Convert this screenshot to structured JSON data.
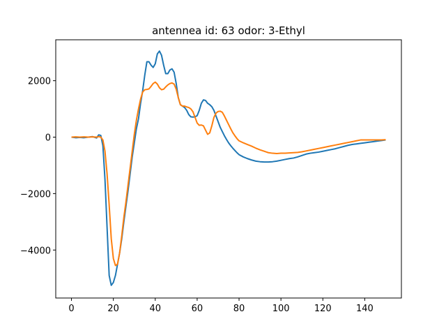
{
  "chart_data": {
    "type": "line",
    "title": "antennea id: 63    odor: 3-Ethyl",
    "xlabel": "",
    "ylabel": "",
    "xlim": [
      -7.5,
      157.5
    ],
    "ylim": [
      -5700,
      3450
    ],
    "xticks": [
      0,
      20,
      40,
      60,
      80,
      100,
      120,
      140
    ],
    "yticks": [
      -4000,
      -2000,
      0,
      2000
    ],
    "yticklabels": [
      "−4000",
      "−2000",
      "0",
      "2000"
    ],
    "grid": false,
    "legend": "none",
    "series": [
      {
        "color": "#1f77b4",
        "x": [
          0,
          2,
          4,
          6,
          8,
          10,
          12,
          13,
          14,
          15,
          16,
          17,
          18,
          19,
          20,
          21,
          22,
          23,
          24,
          25,
          26,
          27,
          28,
          29,
          30,
          31,
          32,
          33,
          34,
          35,
          36,
          37,
          38,
          39,
          40,
          41,
          42,
          43,
          44,
          45,
          46,
          47,
          48,
          49,
          50,
          51,
          52,
          53,
          54,
          55,
          56,
          57,
          58,
          59,
          60,
          61,
          62,
          63,
          64,
          65,
          66,
          67,
          68,
          69,
          70,
          71,
          72,
          73,
          74,
          75,
          76,
          77,
          78,
          79,
          80,
          82,
          84,
          86,
          88,
          90,
          92,
          94,
          96,
          98,
          100,
          102,
          104,
          106,
          108,
          110,
          112,
          114,
          116,
          118,
          120,
          122,
          124,
          126,
          128,
          130,
          132,
          134,
          136,
          138,
          140,
          142,
          144,
          146,
          148,
          150
        ],
        "y": [
          0,
          -20,
          -10,
          -20,
          0,
          20,
          -30,
          80,
          60,
          -300,
          -1500,
          -3200,
          -4900,
          -5250,
          -5150,
          -4900,
          -4500,
          -4100,
          -3600,
          -3000,
          -2450,
          -1900,
          -1300,
          -700,
          -200,
          300,
          650,
          1200,
          1650,
          2200,
          2670,
          2670,
          2550,
          2470,
          2600,
          2950,
          3050,
          2900,
          2550,
          2250,
          2250,
          2380,
          2420,
          2300,
          1900,
          1400,
          1150,
          1100,
          1050,
          950,
          800,
          720,
          710,
          720,
          760,
          950,
          1200,
          1320,
          1300,
          1200,
          1150,
          1080,
          950,
          750,
          550,
          350,
          200,
          50,
          -80,
          -200,
          -300,
          -390,
          -470,
          -550,
          -620,
          -700,
          -760,
          -810,
          -850,
          -870,
          -880,
          -880,
          -870,
          -850,
          -820,
          -790,
          -760,
          -740,
          -700,
          -650,
          -600,
          -570,
          -550,
          -530,
          -500,
          -470,
          -440,
          -410,
          -370,
          -330,
          -290,
          -260,
          -240,
          -220,
          -200,
          -180,
          -160,
          -140,
          -120,
          -100
        ]
      },
      {
        "color": "#ff7f0e",
        "x": [
          0,
          2,
          4,
          6,
          8,
          10,
          12,
          13,
          14,
          15,
          16,
          17,
          18,
          19,
          20,
          21,
          22,
          23,
          24,
          25,
          26,
          27,
          28,
          29,
          30,
          31,
          32,
          33,
          34,
          35,
          36,
          37,
          38,
          39,
          40,
          41,
          42,
          43,
          44,
          45,
          46,
          47,
          48,
          49,
          50,
          51,
          52,
          53,
          54,
          55,
          56,
          57,
          58,
          59,
          60,
          61,
          62,
          63,
          64,
          65,
          66,
          67,
          68,
          69,
          70,
          71,
          72,
          73,
          74,
          75,
          76,
          77,
          78,
          79,
          80,
          82,
          84,
          86,
          88,
          90,
          92,
          94,
          96,
          98,
          100,
          102,
          104,
          106,
          108,
          110,
          112,
          114,
          116,
          118,
          120,
          122,
          124,
          126,
          128,
          130,
          132,
          134,
          136,
          138,
          140,
          142,
          144,
          146,
          148,
          150
        ],
        "y": [
          0,
          10,
          0,
          10,
          0,
          10,
          0,
          20,
          0,
          -100,
          -500,
          -1300,
          -2400,
          -3600,
          -4300,
          -4550,
          -4500,
          -4100,
          -3500,
          -2850,
          -2300,
          -1700,
          -1100,
          -500,
          100,
          600,
          1000,
          1350,
          1600,
          1680,
          1690,
          1710,
          1800,
          1900,
          1950,
          1880,
          1750,
          1680,
          1700,
          1780,
          1850,
          1900,
          1920,
          1880,
          1700,
          1400,
          1150,
          1100,
          1100,
          1070,
          1050,
          1000,
          900,
          700,
          500,
          420,
          430,
          400,
          250,
          100,
          150,
          400,
          700,
          850,
          910,
          920,
          880,
          750,
          600,
          450,
          300,
          160,
          50,
          -50,
          -130,
          -200,
          -260,
          -320,
          -390,
          -450,
          -500,
          -550,
          -570,
          -580,
          -570,
          -570,
          -560,
          -550,
          -540,
          -520,
          -490,
          -460,
          -430,
          -400,
          -370,
          -340,
          -310,
          -280,
          -250,
          -220,
          -190,
          -160,
          -130,
          -100,
          -100,
          -100,
          -100,
          -100,
          -100,
          -90
        ]
      }
    ]
  }
}
